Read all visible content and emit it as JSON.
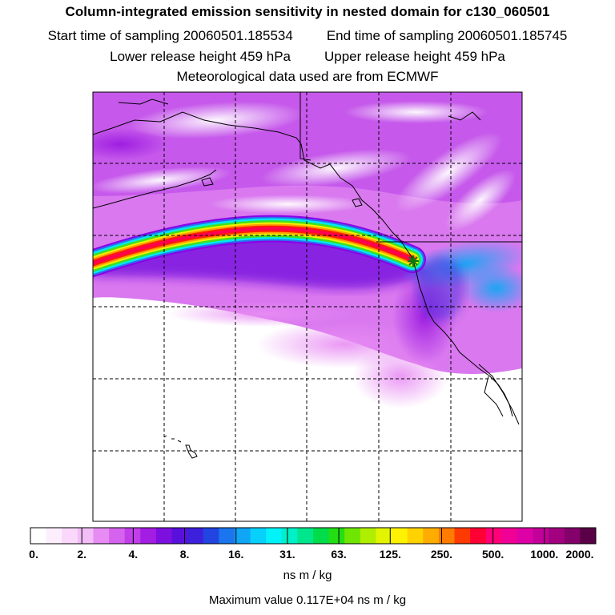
{
  "header": {
    "title": "Column-integrated emission sensitivity in nested domain for c130_060501",
    "start_label": "Start time of sampling 20060501.185534",
    "end_label": "End time of sampling 20060501.185745",
    "lower_label": "Lower release height  459 hPa",
    "upper_label": "Upper release height  459 hPa",
    "met_label": "Meteorological data used are from ECMWF"
  },
  "legend": {
    "tick_labels": [
      "0.",
      "2.",
      "4.",
      "8.",
      "16.",
      "31.",
      "63.",
      "125.",
      "250.",
      "500.",
      "1000.",
      "2000."
    ],
    "colors": [
      "#ffffff",
      "#fdeefd",
      "#f9d8fb",
      "#f3bdf8",
      "#e68cf3",
      "#d563ee",
      "#c13ee9",
      "#a31de2",
      "#7e10df",
      "#5a10dd",
      "#3c20dc",
      "#2244e0",
      "#1a75ee",
      "#10a5f5",
      "#07d0fa",
      "#00f3f8",
      "#00f0c8",
      "#00e68c",
      "#00dc4a",
      "#24de14",
      "#6ee600",
      "#b0ee00",
      "#e3f400",
      "#fff200",
      "#ffd200",
      "#ffac00",
      "#ff7c00",
      "#ff3a00",
      "#ff0034",
      "#ff0078",
      "#f00097",
      "#dc00a6",
      "#c20099",
      "#a2007f",
      "#84006a",
      "#5a0046"
    ],
    "unit": "ns m / kg",
    "max_value_label": "Maximum value  0.117E+04 ns m / kg"
  },
  "map": {
    "receptor_marker": "star-icon",
    "plume_colors": [
      "#8a00e6",
      "#2d6ef0",
      "#00e8f0",
      "#40e020",
      "#f0f000",
      "#ffa000",
      "#ff2000",
      "#ff0050"
    ]
  }
}
